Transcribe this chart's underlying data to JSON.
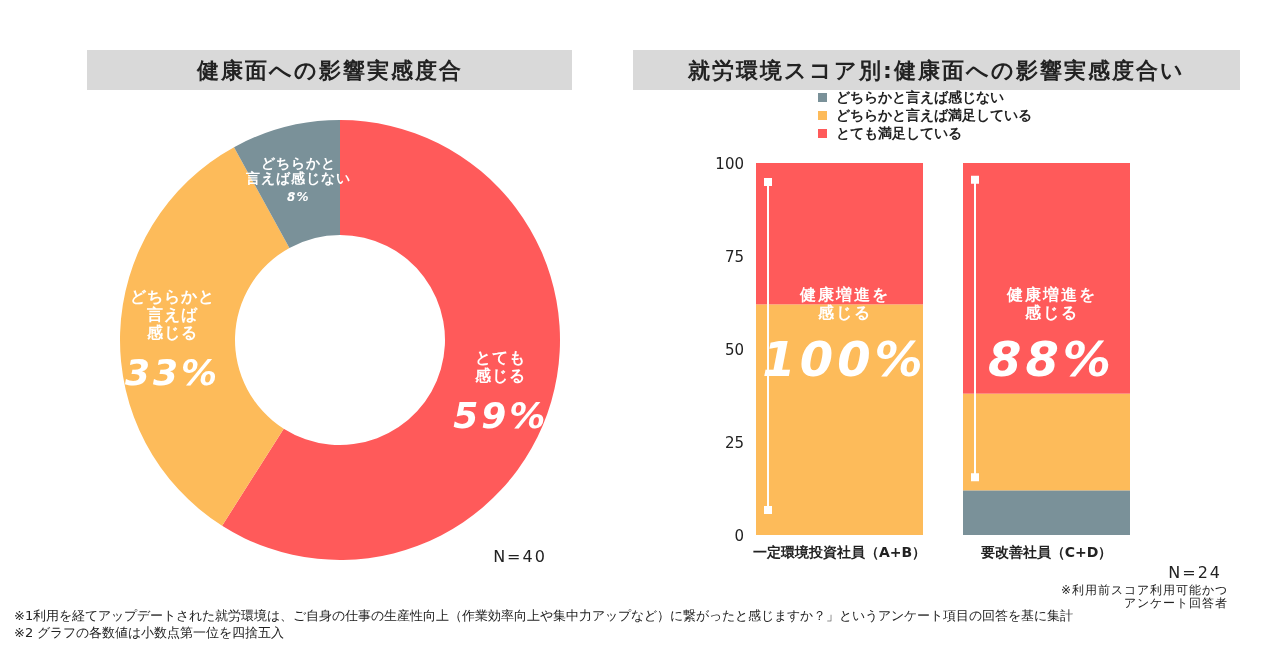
{
  "chart_data": [
    {
      "type": "donut",
      "title": "健康面への影響実感度合",
      "categories": [
        "とても感じる",
        "どちらかと言えば感じる",
        "どちらかと言えば感じない"
      ],
      "values": [
        59,
        33,
        8
      ],
      "colors": [
        "#ff5a5a",
        "#fdbb5a",
        "#7a9199"
      ],
      "value_labels": [
        "59%",
        "33%",
        "8%"
      ],
      "annotations": [
        "N=40"
      ]
    },
    {
      "type": "bar",
      "title": "就労環境スコア別:健康面への影響実感度合い",
      "categories": [
        "一定環境投資社員（A+B）",
        "要改善社員（C+D）"
      ],
      "stacked": true,
      "legend": "top",
      "grid": false,
      "ylim": [
        0,
        100
      ],
      "yticks": [
        0,
        25,
        50,
        75,
        100
      ],
      "series": [
        {
          "name": "どちらかと言えば感じない",
          "color": "#7a9199",
          "values": [
            0,
            12
          ]
        },
        {
          "name": "どちらかと言えば満足している",
          "color": "#fdbb5a",
          "values": [
            62,
            26
          ]
        },
        {
          "name": "とても満足している",
          "color": "#ff5a5a",
          "values": [
            38,
            62
          ]
        }
      ],
      "annotations": [
        "健康増進を感じる",
        "100%",
        "健康増進を感じる",
        "88%",
        "N=24",
        "※利用前スコア利用可能かつアンケート回答者",
        "※1利用を経てアップデートされた就労環境は、ご自身の仕事の生産性向上（作業効率向上や集中力アップなど）に繋がったと感じますか？」というアンケート項目の回答を基に集計",
        "※2 グラフの各数値は小数点第一位を四捨五入"
      ]
    }
  ]
}
